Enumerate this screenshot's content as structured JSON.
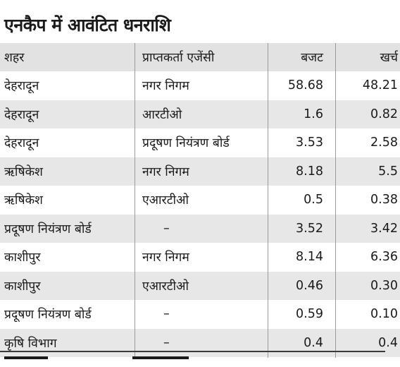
{
  "title": "एनकैप में आवंटित धनराशि",
  "table": {
    "headers": {
      "city": "शहर",
      "agency": "प्राप्तकर्ता एजेंसी",
      "budget": "बजट",
      "expenditure": "खर्च"
    },
    "rows": [
      {
        "city": "देहरादून",
        "agency": "नगर निगम",
        "budget": "58.68",
        "expenditure": "48.21"
      },
      {
        "city": "देहरादून",
        "agency": "आरटीओ",
        "budget": "1.6",
        "expenditure": "0.82"
      },
      {
        "city": "देहरादून",
        "agency": "प्रदूषण नियंत्रण बोर्ड",
        "budget": "3.53",
        "expenditure": "2.58"
      },
      {
        "city": "ऋषिकेश",
        "agency": "नगर निगम",
        "budget": "8.18",
        "expenditure": "5.5"
      },
      {
        "city": "ऋषिकेश",
        "agency": "एआरटीओ",
        "budget": "0.5",
        "expenditure": "0.38"
      },
      {
        "city": "प्रदूषण नियंत्रण बोर्ड",
        "agency": "–",
        "budget": "3.52",
        "expenditure": "3.42"
      },
      {
        "city": "काशीपुर",
        "agency": "नगर निगम",
        "budget": "8.14",
        "expenditure": "6.36"
      },
      {
        "city": "काशीपुर",
        "agency": "एआरटीओ",
        "budget": "0.46",
        "expenditure": "0.30"
      },
      {
        "city": "प्रदूषण नियंत्रण बोर्ड",
        "agency": "–",
        "budget": "0.59",
        "expenditure": "0.10"
      },
      {
        "city": "कृषि विभाग",
        "agency": "–",
        "budget": "0.4",
        "expenditure": "0.4"
      }
    ]
  }
}
